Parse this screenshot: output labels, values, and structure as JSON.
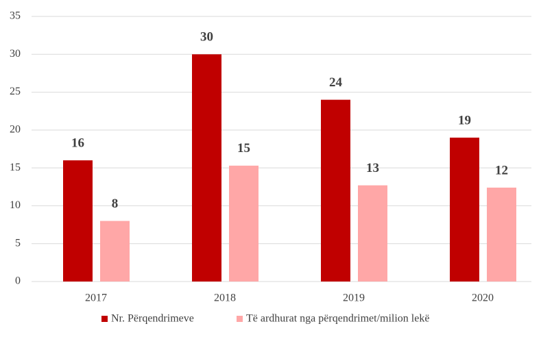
{
  "chart_data": {
    "type": "bar",
    "categories": [
      "2017",
      "2018",
      "2019",
      "2020"
    ],
    "series": [
      {
        "name": "Nr. Përqendrimeve",
        "color": "#c00000",
        "values": [
          16,
          30,
          24,
          19
        ]
      },
      {
        "name": "Të ardhurat nga përqendrimet/milion lekë",
        "color": "#ffa7a7",
        "values": [
          8,
          15.3,
          12.7,
          12.4
        ],
        "value_labels": [
          "8",
          "15",
          "13",
          "12"
        ]
      }
    ],
    "ylim": [
      0,
      35
    ],
    "yticks": [
      0,
      5,
      10,
      15,
      20,
      25,
      30,
      35
    ],
    "grid": true,
    "legend": "bottom"
  }
}
